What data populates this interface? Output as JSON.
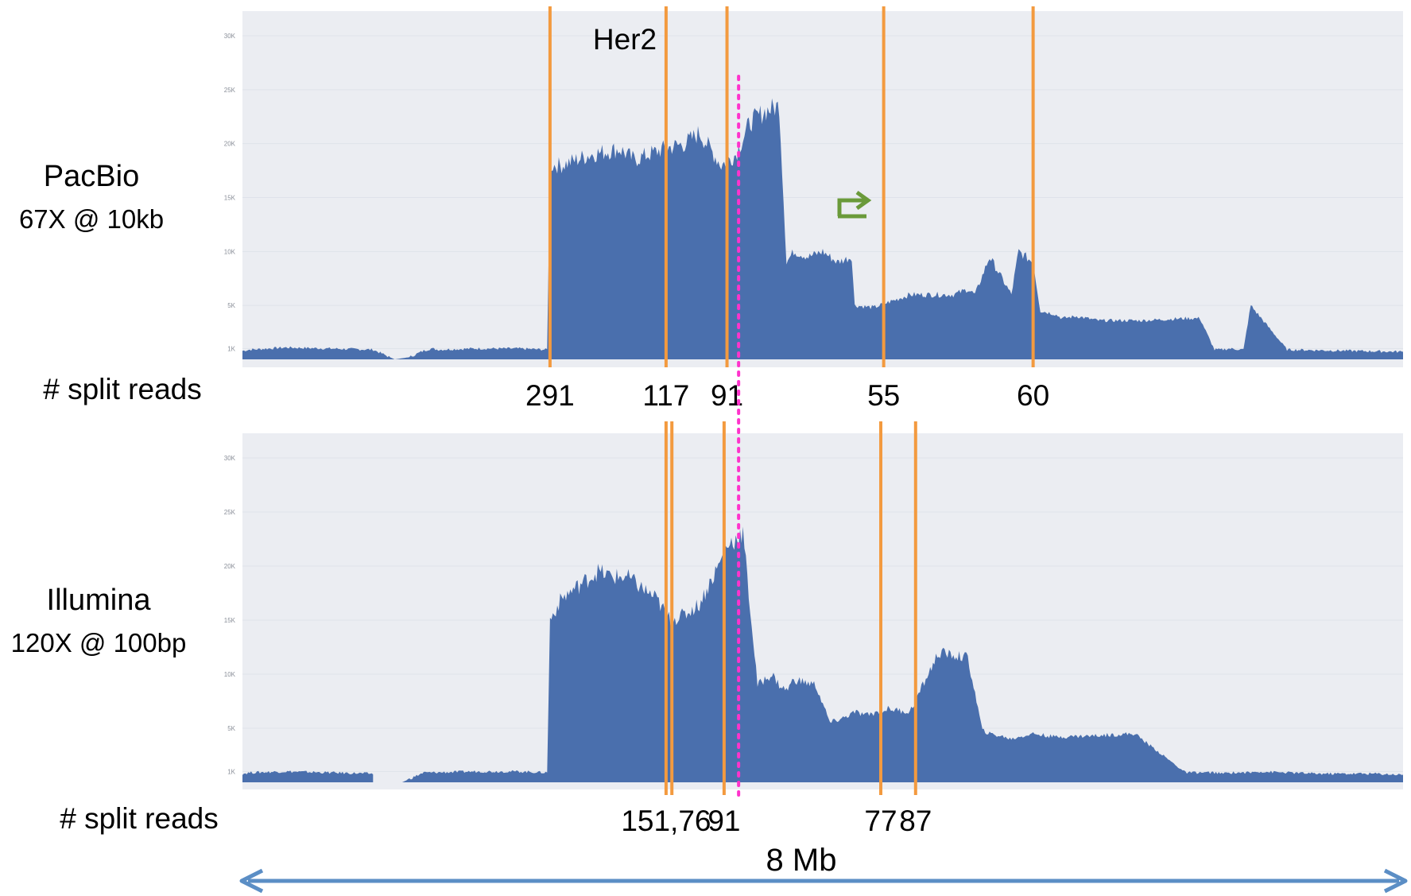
{
  "chart_data": [
    {
      "type": "area",
      "title": "",
      "xlabel": "",
      "ylabel": "",
      "platform_label": "PacBio",
      "coverage_label": "67X @ 10kb",
      "count_label": "# split reads",
      "y_ticks": [
        "1K",
        "5K",
        "10K",
        "15K",
        "20K",
        "25K",
        "30K"
      ],
      "ylim": [
        0,
        30000
      ],
      "xlim": [
        0,
        8
      ],
      "x_unit": "Mb",
      "gene_marker": {
        "label": "Her2",
        "x": 3.42,
        "color": "#ff33cc"
      },
      "series": [
        {
          "x": [
            0,
            0.05,
            0.3,
            0.6,
            0.9,
            1.0,
            1.05,
            1.15,
            1.25,
            1.3,
            1.35,
            1.6,
            1.9,
            2.1,
            2.12,
            2.2,
            2.4,
            2.6,
            2.7,
            2.9,
            3.05,
            3.15,
            3.3,
            3.4,
            3.5,
            3.6,
            3.7,
            3.75,
            3.8,
            3.9,
            4.0,
            4.1,
            4.2,
            4.22,
            4.35,
            4.6,
            4.9,
            5.0,
            5.05,
            5.15,
            5.3,
            5.35,
            5.45,
            5.5,
            5.6,
            5.65,
            5.75,
            5.9,
            6.2,
            6.5,
            6.6,
            6.7,
            6.75,
            6.8,
            6.9,
            6.95,
            7.2,
            7.6,
            8.0
          ],
          "values": [
            800,
            900,
            1100,
            1000,
            900,
            300,
            0,
            200,
            800,
            1000,
            900,
            1000,
            1000,
            900,
            18000,
            18000,
            19000,
            19500,
            18500,
            19500,
            20000,
            21000,
            18000,
            19000,
            22000,
            23000,
            23500,
            9000,
            10000,
            9500,
            10000,
            9000,
            9500,
            5000,
            4800,
            6000,
            6000,
            6500,
            6000,
            9500,
            6000,
            10000,
            9000,
            4500,
            4200,
            3800,
            4000,
            3600,
            3600,
            3800,
            3800,
            900,
            900,
            1000,
            900,
            5000,
            900,
            800,
            700
          ]
        }
      ],
      "breakpoints": [
        {
          "x": 2.12,
          "label": "291"
        },
        {
          "x": 2.92,
          "label": "117"
        },
        {
          "x": 3.34,
          "label": "91"
        },
        {
          "x": 4.42,
          "label": "55"
        },
        {
          "x": 5.45,
          "label": "60"
        }
      ],
      "annotation": {
        "type": "arrow",
        "x": 4.25,
        "color": "#6a9a3a"
      }
    },
    {
      "type": "area",
      "title": "",
      "xlabel": "",
      "ylabel": "",
      "platform_label": "Illumina",
      "coverage_label": "120X @ 100bp",
      "count_label": "# split reads",
      "y_ticks": [
        "1K",
        "5K",
        "10K",
        "15K",
        "20K",
        "25K",
        "30K"
      ],
      "ylim": [
        0,
        30000
      ],
      "xlim": [
        0,
        8
      ],
      "x_unit": "Mb",
      "gene_marker": {
        "label": "Her2",
        "x": 3.42,
        "color": "#ff33cc"
      },
      "series": [
        {
          "x": [
            0,
            0.05,
            0.3,
            0.6,
            0.9,
            0.9,
            1.1,
            1.25,
            1.3,
            1.6,
            1.9,
            2.1,
            2.12,
            2.2,
            2.35,
            2.45,
            2.55,
            2.65,
            2.75,
            2.85,
            2.95,
            3.05,
            3.15,
            3.28,
            3.35,
            3.45,
            3.55,
            3.65,
            3.7,
            3.75,
            3.8,
            3.95,
            4.05,
            4.15,
            4.22,
            4.3,
            4.45,
            4.6,
            4.8,
            5.0,
            5.1,
            5.15,
            5.25,
            5.3,
            5.35,
            5.45,
            5.6,
            5.85,
            6.15,
            6.5,
            6.7,
            6.75,
            6.8,
            6.95,
            7.0,
            7.4,
            7.8,
            8.0
          ],
          "values": [
            800,
            900,
            1000,
            900,
            800,
            0,
            0,
            900,
            900,
            1000,
            1000,
            900,
            15000,
            17000,
            18500,
            19500,
            19000,
            19000,
            18000,
            17000,
            15000,
            15500,
            16500,
            20000,
            22000,
            23000,
            9000,
            10000,
            9000,
            8500,
            9500,
            9000,
            5500,
            6000,
            6500,
            6200,
            6800,
            6500,
            12000,
            11500,
            4800,
            4500,
            4200,
            4000,
            4200,
            4500,
            4200,
            4300,
            4500,
            900,
            900,
            800,
            900,
            900,
            1000,
            800,
            800,
            700
          ]
        }
      ],
      "breakpoints": [
        {
          "x": 2.92,
          "label": "151,76"
        },
        {
          "x": 2.96,
          "label": ""
        },
        {
          "x": 3.32,
          "label": "91"
        },
        {
          "x": 4.4,
          "label": "77"
        },
        {
          "x": 4.64,
          "label": "87"
        }
      ]
    }
  ],
  "scale_bar": {
    "label": "8 Mb",
    "color": "#5b8ec5"
  },
  "colors": {
    "area": "#4a6fad",
    "panel_bg": "#ebedf2",
    "breakpoint": "#f39a3f"
  }
}
